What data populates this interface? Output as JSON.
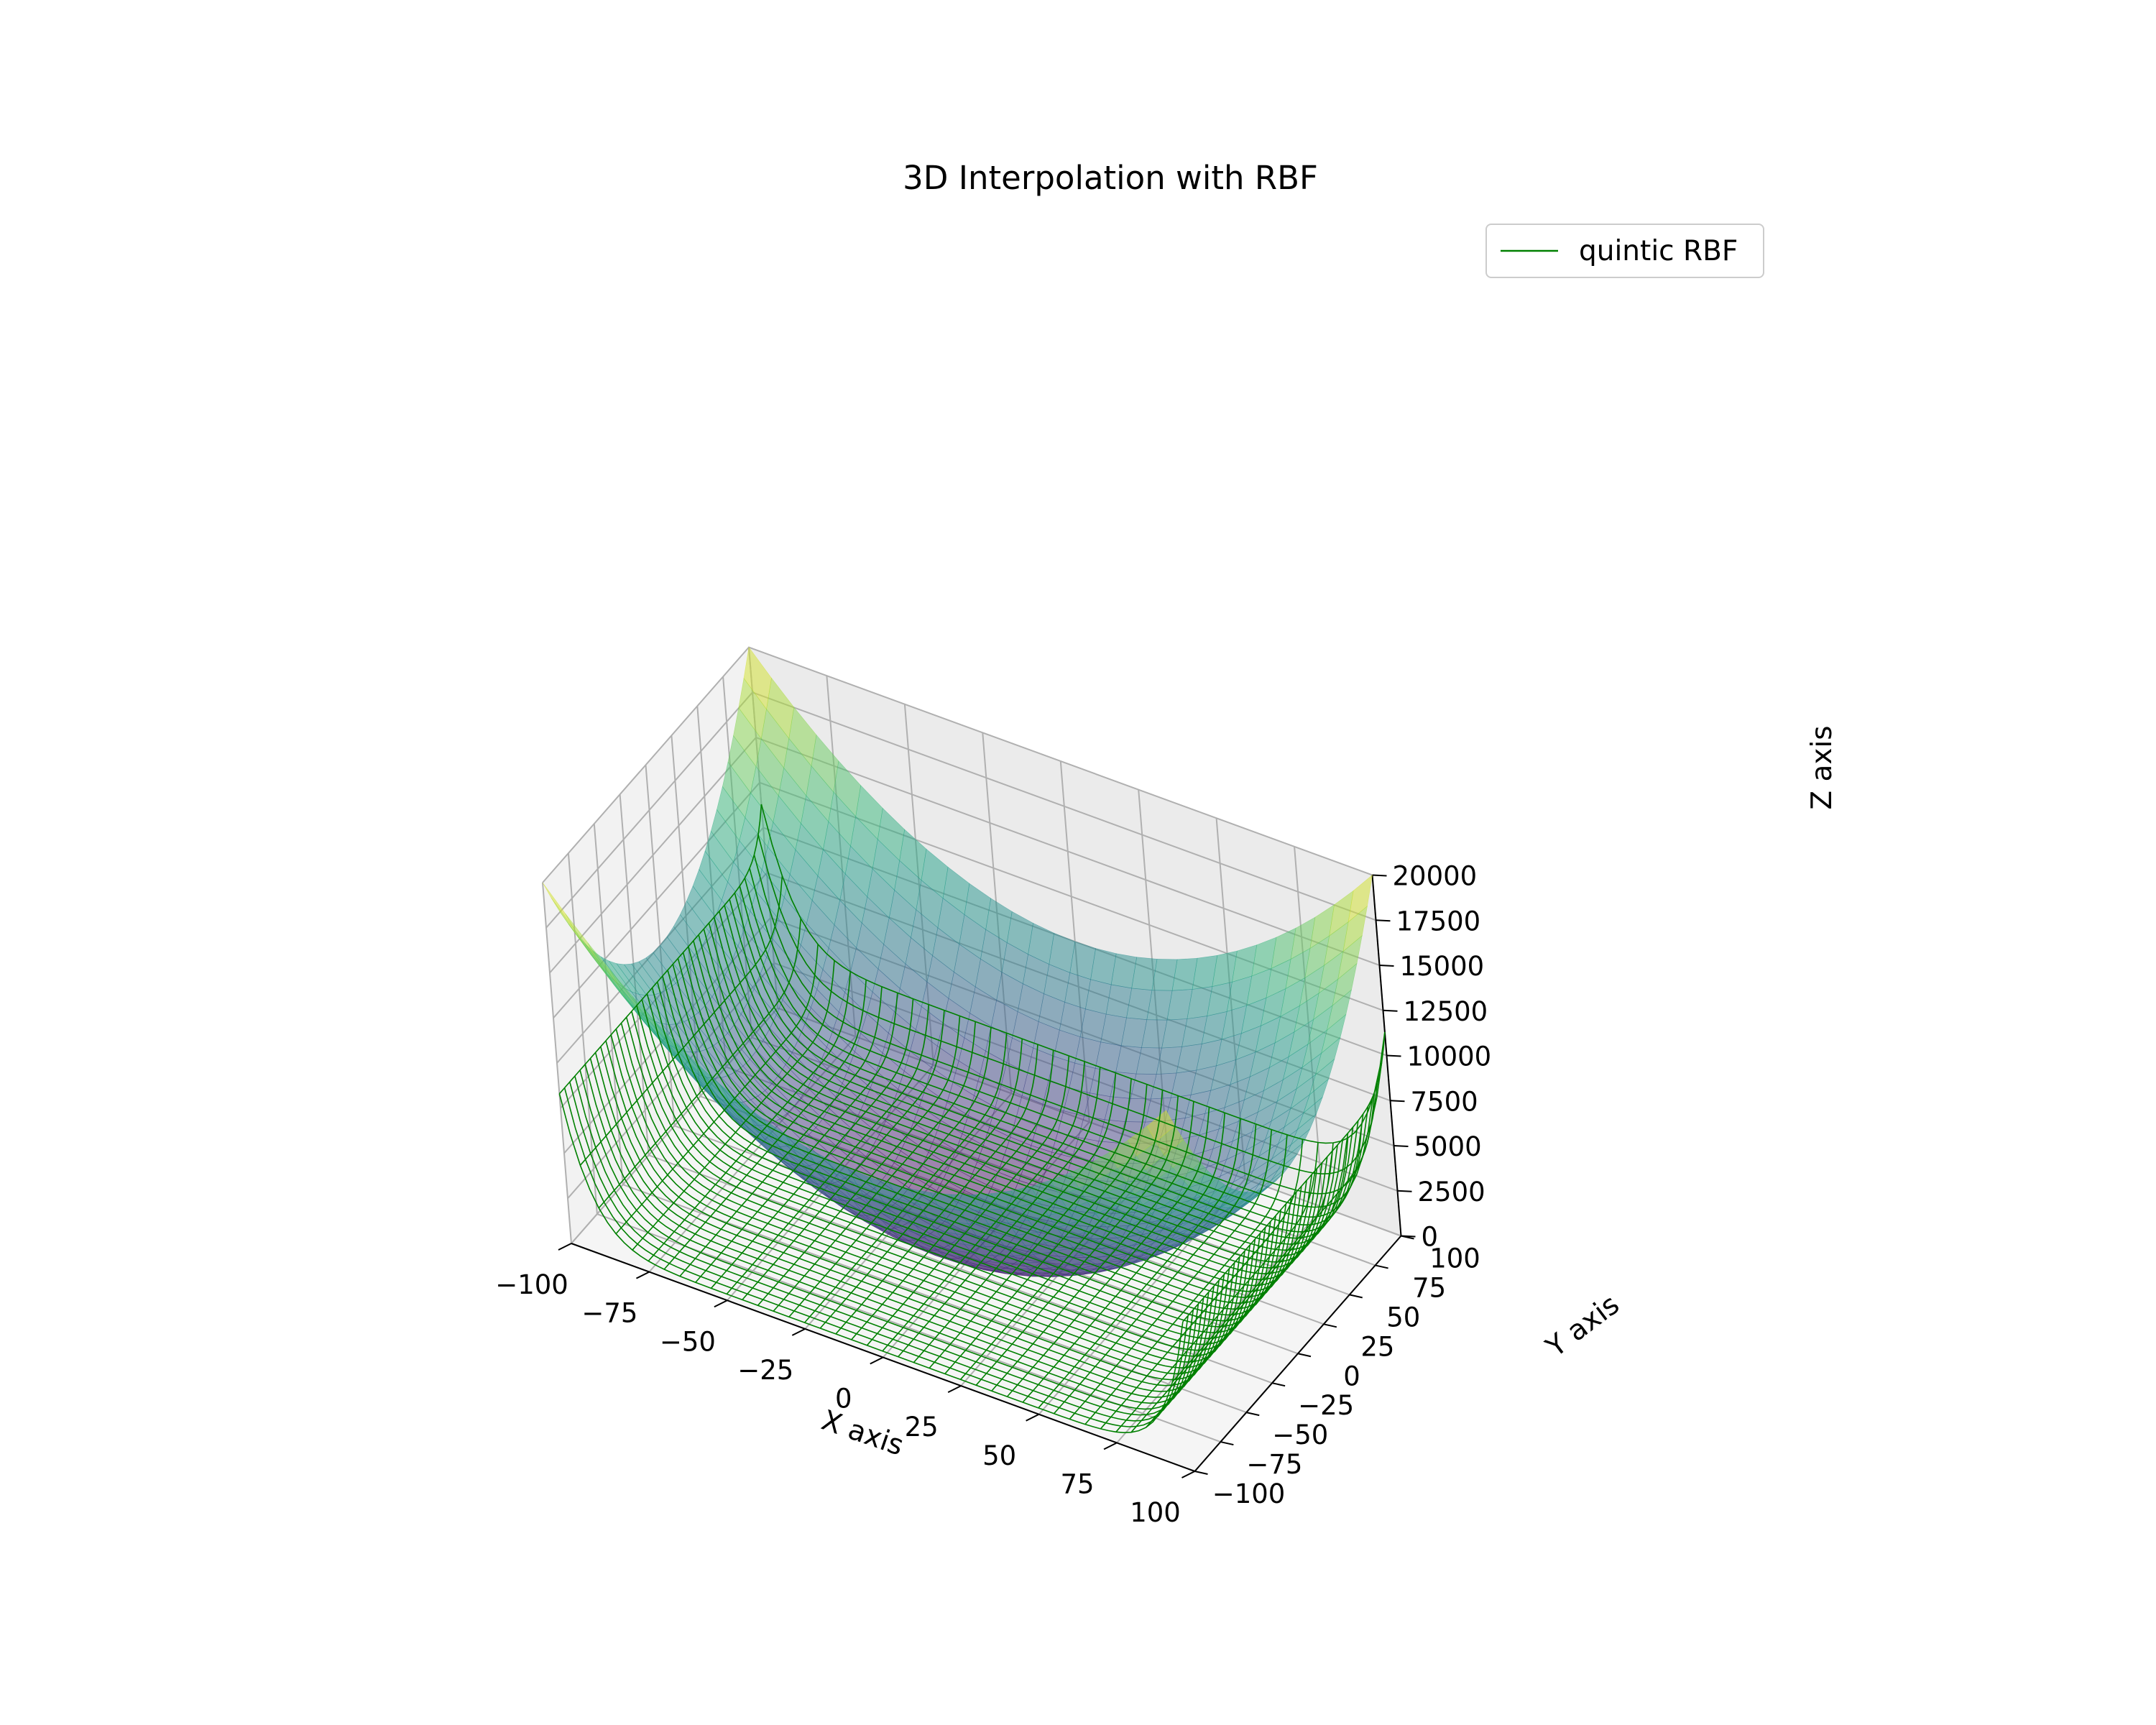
{
  "chart_data": {
    "type": "surface3d",
    "title": "3D Interpolation with RBF",
    "xlabel": "X axis",
    "ylabel": "Y axis",
    "zlabel": "Z axis",
    "xlim": [
      -100,
      100
    ],
    "ylim": [
      -100,
      100
    ],
    "zlim": [
      0,
      20000
    ],
    "x_ticks": [
      "−100",
      "−75",
      "−50",
      "−25",
      "0",
      "25",
      "50",
      "75",
      "100"
    ],
    "y_ticks": [
      "−100",
      "−75",
      "−50",
      "−25",
      "0",
      "25",
      "50",
      "75",
      "100"
    ],
    "z_ticks": [
      "0",
      "2500",
      "5000",
      "7500",
      "10000",
      "12500",
      "15000",
      "17500",
      "20000"
    ],
    "grid": true,
    "legend_position": "top-right",
    "colormap": "viridis",
    "wire_color": "#008000",
    "series": [
      {
        "style": "surface",
        "function": "z = x^2 + y^2",
        "x_range": [
          -100,
          100
        ],
        "y_range": [
          -100,
          100
        ],
        "z_min": 0,
        "z_max": 20000,
        "alpha": 0.5
      },
      {
        "name": "quintic RBF",
        "style": "wireframe",
        "color": "#008000",
        "x_range": [
          -100,
          100
        ],
        "y_range": [
          -100,
          100
        ],
        "approx_profile": "z ≈ 350 + 8000·(x/100)^12 + 3000·max(0, y/100)^12",
        "z_min": 350,
        "z_max_x_edge": 8300,
        "z_max_corner": 11300
      }
    ]
  }
}
